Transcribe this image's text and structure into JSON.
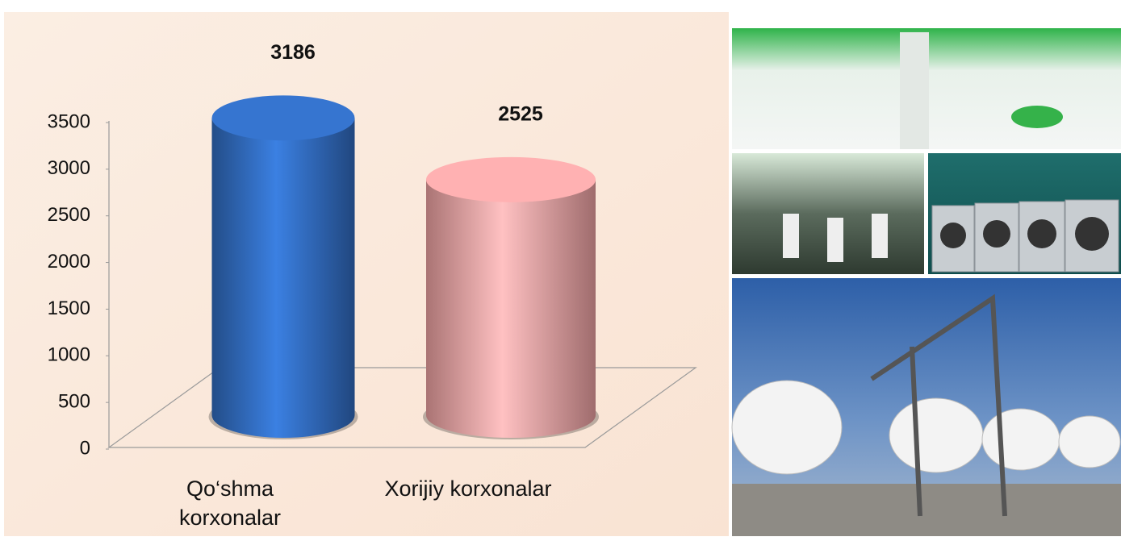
{
  "chart_data": {
    "type": "cylinder-bar",
    "categories": [
      "Qo‘shma korxonalar",
      "Xorijiy korxonalar"
    ],
    "series": [
      {
        "colors": [
          "#2f66b5",
          "#e39a9b"
        ],
        "values": [
          3186,
          2525
        ]
      }
    ],
    "ylim": [
      0,
      3500
    ],
    "yticks": [
      0,
      500,
      1000,
      1500,
      2000,
      2500,
      3000,
      3500
    ],
    "grid": false
  }
}
